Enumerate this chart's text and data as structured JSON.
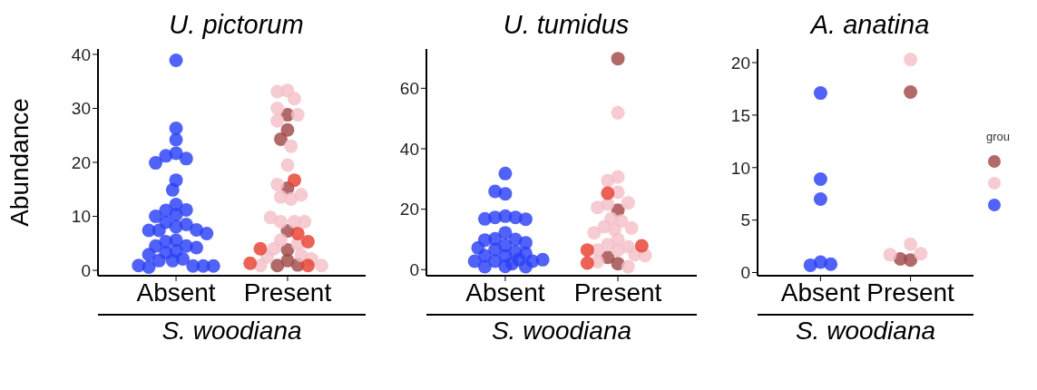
{
  "chart_data": [
    {
      "type": "scatter",
      "title": "U. pictorum",
      "xlabel": "S. woodiana",
      "ylabel": "Abundance",
      "categories": [
        "Absent",
        "Present"
      ],
      "ylim": [
        -1,
        41
      ],
      "yticks": [
        0,
        10,
        20,
        30,
        40
      ],
      "grid": false,
      "legend": false,
      "marker": "circle",
      "series": [
        {
          "color": "#a04848",
          "x": [
            "Present",
            "Present",
            "Present",
            "Present",
            "Present",
            "Present",
            "Present",
            "Present",
            "Present"
          ],
          "values": [
            28.8,
            26.0,
            24.3,
            15.2,
            7.3,
            3.8,
            1.8,
            0.9,
            1.0
          ]
        },
        {
          "color": "#f4c0c8",
          "x": [
            "Present",
            "Present",
            "Present",
            "Present",
            "Present",
            "Present",
            "Present",
            "Present",
            "Present",
            "Present",
            "Present",
            "Present",
            "Present",
            "Present",
            "Present",
            "Present",
            "Present",
            "Present",
            "Present",
            "Present",
            "Present",
            "Present",
            "Present",
            "Present"
          ],
          "values": [
            33.3,
            33.1,
            31.8,
            30.0,
            28.8,
            27.7,
            23.0,
            19.5,
            15.9,
            13.6,
            13.2,
            14.0,
            9.0,
            9.0,
            9.8,
            9.0,
            5.6,
            4.9,
            4.0,
            2.8,
            2.5,
            2.1,
            0.9,
            0.9
          ]
        },
        {
          "color": "#2a3ff5",
          "x": [
            "Absent",
            "Absent",
            "Absent",
            "Absent",
            "Absent",
            "Absent",
            "Absent",
            "Absent",
            "Absent",
            "Absent",
            "Absent",
            "Absent",
            "Absent",
            "Absent",
            "Absent",
            "Absent",
            "Absent",
            "Absent",
            "Absent",
            "Absent",
            "Absent",
            "Absent",
            "Absent",
            "Absent",
            "Absent",
            "Absent",
            "Absent",
            "Absent",
            "Absent",
            "Absent",
            "Absent",
            "Absent",
            "Absent",
            "Absent",
            "Absent",
            "Absent",
            "Absent"
          ],
          "values": [
            38.9,
            26.3,
            24.2,
            21.7,
            21.2,
            20.7,
            19.9,
            16.7,
            14.9,
            12.2,
            11.1,
            11.2,
            10.3,
            10.0,
            8.9,
            8.1,
            8.5,
            7.4,
            7.5,
            7.4,
            6.8,
            5.6,
            5.3,
            4.5,
            4.5,
            4.2,
            3.6,
            3.3,
            2.9,
            2.1,
            1.8,
            1.8,
            0.8,
            0.6,
            0.8,
            0.9,
            0.8
          ]
        },
        {
          "color": "#e84030",
          "x": [
            "Present",
            "Present",
            "Present",
            "Present",
            "Present",
            "Present"
          ],
          "values": [
            16.7,
            6.8,
            5.3,
            4.0,
            1.3,
            0.9
          ]
        }
      ]
    },
    {
      "type": "scatter",
      "title": "U. tumidus",
      "xlabel": "S. woodiana",
      "categories": [
        "Absent",
        "Present"
      ],
      "ylim": [
        -2,
        73
      ],
      "yticks": [
        0,
        20,
        40,
        60
      ],
      "grid": false,
      "legend": false,
      "marker": "circle",
      "series": [
        {
          "color": "#a04848",
          "x": [
            "Present",
            "Present",
            "Present",
            "Present"
          ],
          "values": [
            69.8,
            19.7,
            2.0,
            4.1
          ]
        },
        {
          "color": "#f4c0c8",
          "x": [
            "Present",
            "Present",
            "Present",
            "Present",
            "Present",
            "Present",
            "Present",
            "Present",
            "Present",
            "Present",
            "Present",
            "Present",
            "Present",
            "Present",
            "Present",
            "Present",
            "Present",
            "Present",
            "Present",
            "Present",
            "Present",
            "Present"
          ],
          "values": [
            51.9,
            30.7,
            29.4,
            25.6,
            21.7,
            22.1,
            20.6,
            16.9,
            16.1,
            14.2,
            13.2,
            13.8,
            12.2,
            10.0,
            8.3,
            7.6,
            6.5,
            5.0,
            6.5,
            4.7,
            2.7,
            1.0
          ]
        },
        {
          "color": "#2a3ff5",
          "x": [
            "Absent",
            "Absent",
            "Absent",
            "Absent",
            "Absent",
            "Absent",
            "Absent",
            "Absent",
            "Absent",
            "Absent",
            "Absent",
            "Absent",
            "Absent",
            "Absent",
            "Absent",
            "Absent",
            "Absent",
            "Absent",
            "Absent",
            "Absent",
            "Absent",
            "Absent",
            "Absent",
            "Absent",
            "Absent",
            "Absent",
            "Absent",
            "Absent",
            "Absent"
          ],
          "values": [
            31.8,
            25.1,
            25.9,
            17.7,
            17.3,
            17.3,
            16.8,
            16.7,
            12.2,
            10.2,
            10.0,
            9.8,
            8.9,
            8.0,
            6.7,
            7.2,
            5.9,
            5.4,
            4.6,
            4.6,
            2.8,
            2.8,
            2.8,
            3.3,
            3.3,
            1.1,
            1.0,
            1.0,
            2.0
          ]
        },
        {
          "color": "#e84030",
          "x": [
            "Present",
            "Present",
            "Present",
            "Present"
          ],
          "values": [
            25.3,
            7.9,
            6.5,
            2.2
          ]
        }
      ]
    },
    {
      "type": "scatter",
      "title": "A. anatina",
      "xlabel": "S. woodiana",
      "legend_title": "grou",
      "categories": [
        "Absent",
        "Present"
      ],
      "ylim": [
        -0.3,
        21.3
      ],
      "yticks": [
        0,
        5,
        10,
        15,
        20
      ],
      "grid": false,
      "legend": false,
      "marker": "circle",
      "series": [
        {
          "color": "#a04848",
          "x": [
            "Present",
            "Present",
            "Present"
          ],
          "values": [
            17.2,
            1.2,
            1.3
          ]
        },
        {
          "color": "#f4c0c8",
          "x": [
            "Present",
            "Present",
            "Present",
            "Present"
          ],
          "values": [
            20.3,
            2.7,
            1.8,
            1.7
          ]
        },
        {
          "color": "#2a3ff5",
          "x": [
            "Absent",
            "Absent",
            "Absent",
            "Absent",
            "Absent",
            "Absent"
          ],
          "values": [
            17.1,
            8.9,
            7.0,
            1.0,
            0.7,
            0.8
          ]
        }
      ]
    }
  ]
}
